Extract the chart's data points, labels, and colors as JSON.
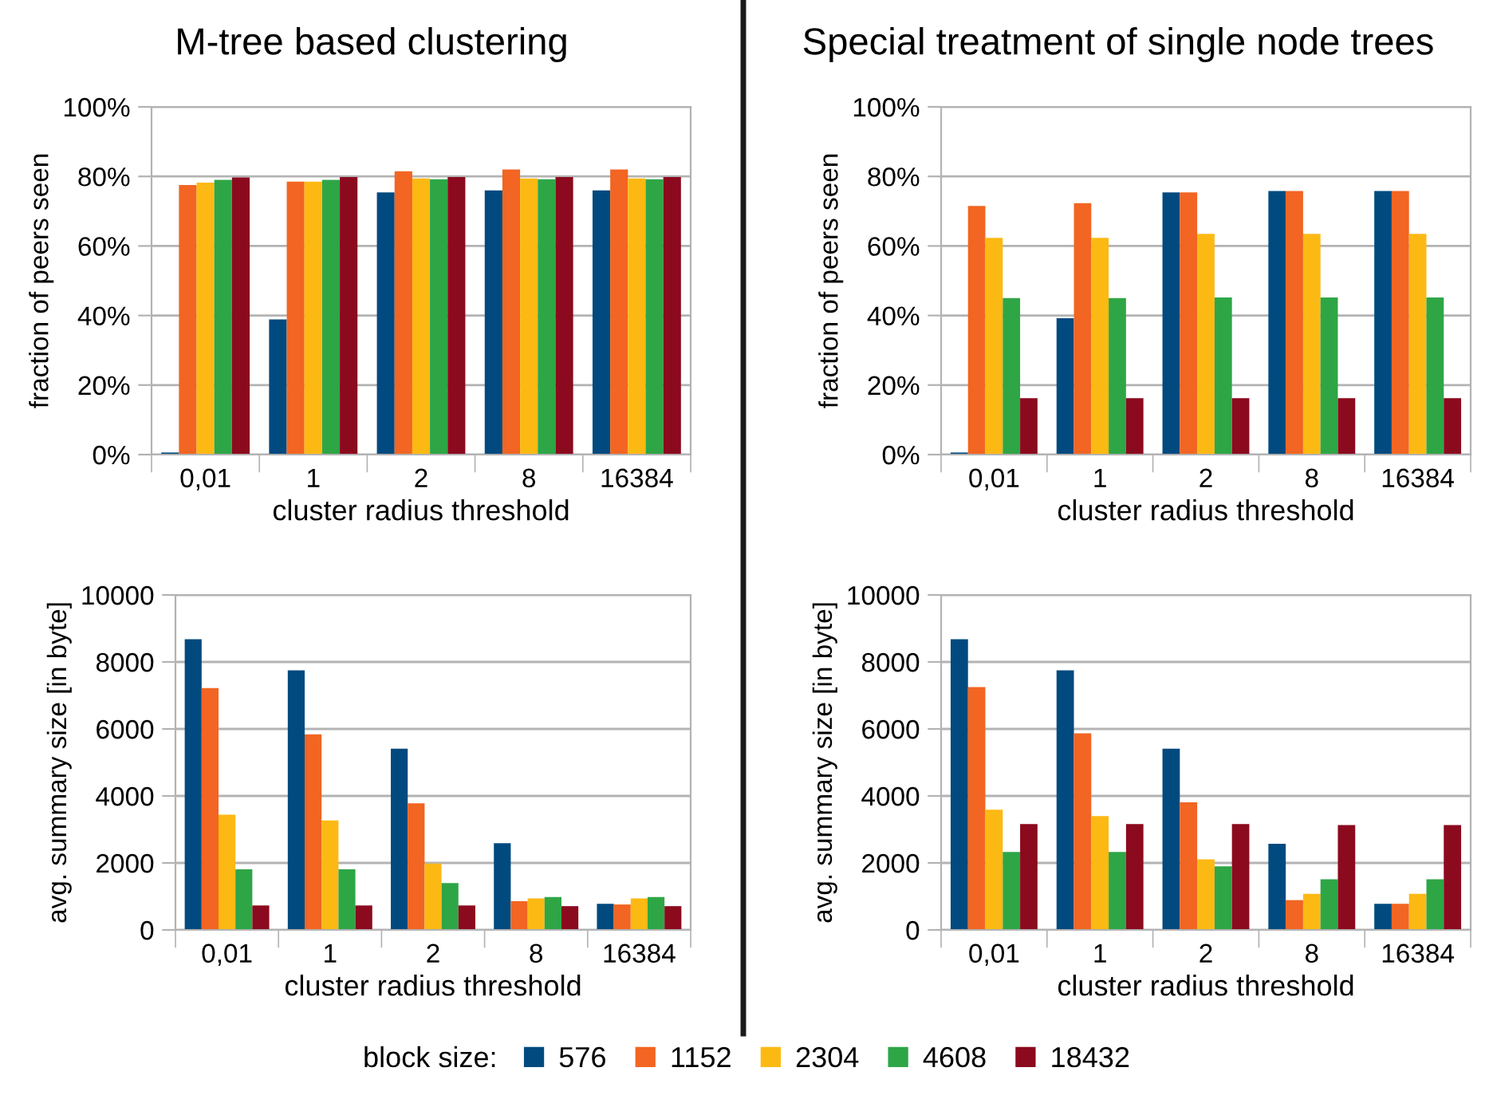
{
  "chart_data": [
    {
      "type": "bar",
      "title": "M-tree based clustering",
      "xlabel": "cluster radius threshold",
      "ylabel": "fraction of peers seen",
      "legend": "bottom",
      "legend_title": "block size:",
      "categories": [
        "0,01",
        "1",
        "2",
        "8",
        "16384"
      ],
      "ylim": [
        0,
        100
      ],
      "yticks": [
        {
          "value": 0,
          "label": "0%"
        },
        {
          "value": 20,
          "label": "20%"
        },
        {
          "value": 40,
          "label": "40%"
        },
        {
          "value": 60,
          "label": "60%"
        },
        {
          "value": 80,
          "label": "80%"
        },
        {
          "value": 100,
          "label": "100%"
        }
      ],
      "grid": "y",
      "series": [
        {
          "name": "576",
          "color": "#004a7f",
          "values": [
            0.6,
            38.9,
            75.4,
            76,
            76
          ]
        },
        {
          "name": "1152",
          "color": "#f26522",
          "values": [
            77.5,
            78.5,
            81.5,
            82,
            82
          ]
        },
        {
          "name": "2304",
          "color": "#fdb913",
          "values": [
            78.2,
            78.5,
            79.4,
            79.4,
            79.4
          ]
        },
        {
          "name": "4608",
          "color": "#2ea646",
          "values": [
            79,
            79,
            79.2,
            79.2,
            79.2
          ]
        },
        {
          "name": "18432",
          "color": "#8b0a1e",
          "values": [
            79.7,
            79.8,
            79.8,
            79.8,
            79.8
          ]
        }
      ]
    },
    {
      "type": "bar",
      "title": "Special treatment of single node trees",
      "xlabel": "cluster radius threshold",
      "ylabel": "fraction of peers seen",
      "categories": [
        "0,01",
        "1",
        "2",
        "8",
        "16384"
      ],
      "ylim": [
        0,
        100
      ],
      "yticks": [
        {
          "value": 0,
          "label": "0%"
        },
        {
          "value": 20,
          "label": "20%"
        },
        {
          "value": 40,
          "label": "40%"
        },
        {
          "value": 60,
          "label": "60%"
        },
        {
          "value": 80,
          "label": "80%"
        },
        {
          "value": 100,
          "label": "100%"
        }
      ],
      "grid": "y",
      "series": [
        {
          "name": "576",
          "color": "#004a7f",
          "values": [
            0.6,
            39.2,
            75.4,
            75.8,
            75.8
          ]
        },
        {
          "name": "1152",
          "color": "#f26522",
          "values": [
            71.5,
            72.3,
            75.4,
            75.8,
            75.8
          ]
        },
        {
          "name": "2304",
          "color": "#fdb913",
          "values": [
            62.3,
            62.3,
            63.5,
            63.5,
            63.5
          ]
        },
        {
          "name": "4608",
          "color": "#2ea646",
          "values": [
            45,
            45,
            45.2,
            45.2,
            45.2
          ]
        },
        {
          "name": "18432",
          "color": "#8b0a1e",
          "values": [
            16.2,
            16.2,
            16.2,
            16.2,
            16.2
          ]
        }
      ]
    },
    {
      "type": "bar",
      "xlabel": "cluster radius threshold",
      "ylabel": "avg. summary size [in byte]",
      "categories": [
        "0,01",
        "1",
        "2",
        "8",
        "16384"
      ],
      "ylim": [
        0,
        10000
      ],
      "yticks": [
        0,
        2000,
        4000,
        6000,
        8000,
        10000
      ],
      "grid": "y",
      "series": [
        {
          "name": "576",
          "color": "#004a7f",
          "values": [
            8680,
            7750,
            5410,
            2590,
            780
          ]
        },
        {
          "name": "1152",
          "color": "#f26522",
          "values": [
            7220,
            5840,
            3780,
            860,
            760
          ]
        },
        {
          "name": "2304",
          "color": "#fdb913",
          "values": [
            3440,
            3270,
            1980,
            940,
            940
          ]
        },
        {
          "name": "4608",
          "color": "#2ea646",
          "values": [
            1810,
            1810,
            1400,
            980,
            980
          ]
        },
        {
          "name": "18432",
          "color": "#8b0a1e",
          "values": [
            730,
            730,
            730,
            710,
            710
          ]
        }
      ]
    },
    {
      "type": "bar",
      "xlabel": "cluster radius threshold",
      "ylabel": "avg. summary size [in byte]",
      "categories": [
        "0,01",
        "1",
        "2",
        "8",
        "16384"
      ],
      "ylim": [
        0,
        10000
      ],
      "yticks": [
        0,
        2000,
        4000,
        6000,
        8000,
        10000
      ],
      "grid": "y",
      "series": [
        {
          "name": "576",
          "color": "#004a7f",
          "values": [
            8680,
            7750,
            5410,
            2570,
            780
          ]
        },
        {
          "name": "1152",
          "color": "#f26522",
          "values": [
            7250,
            5870,
            3810,
            890,
            780
          ]
        },
        {
          "name": "2304",
          "color": "#fdb913",
          "values": [
            3590,
            3400,
            2110,
            1080,
            1080
          ]
        },
        {
          "name": "4608",
          "color": "#2ea646",
          "values": [
            2330,
            2330,
            1900,
            1510,
            1510
          ]
        },
        {
          "name": "18432",
          "color": "#8b0a1e",
          "values": [
            3160,
            3160,
            3160,
            3130,
            3130
          ]
        }
      ]
    }
  ]
}
